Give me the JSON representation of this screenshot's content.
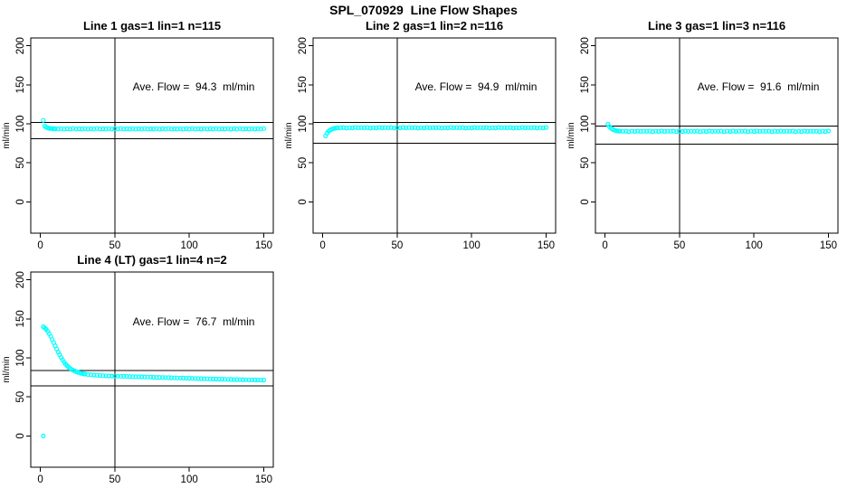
{
  "figure": {
    "title": "SPL_070929  Line Flow Shapes",
    "background": "#ffffff",
    "point_color": "#00ffff",
    "line_color": "#000000"
  },
  "chart_data": [
    {
      "type": "scatter",
      "title": "Line 1 gas=1 lin=1 n=115",
      "annotation": "Ave. Flow =  94.3  ml/min",
      "ave_flow_ml_min": 94.3,
      "n": 115,
      "xlabel": "",
      "ylabel": "ml/min",
      "x_ticks": [
        0,
        50,
        100,
        150
      ],
      "y_ticks": [
        0,
        50,
        100,
        150,
        200
      ],
      "xlim": [
        -6.4,
        156.4
      ],
      "ylim": [
        -40,
        210
      ],
      "grid": false,
      "vline_x": 50,
      "hlines": [
        102,
        81
      ],
      "points": [
        [
          2,
          104.5
        ],
        [
          3,
          97.2
        ],
        [
          4,
          95.6
        ],
        [
          5,
          94.8
        ],
        [
          6,
          94.3
        ],
        [
          7,
          94.0
        ],
        [
          8,
          93.9
        ],
        [
          9,
          93.8
        ],
        [
          10,
          93.7
        ],
        [
          12,
          93.6
        ],
        [
          14,
          93.9
        ],
        [
          16,
          93.3
        ],
        [
          18,
          93.8
        ],
        [
          20,
          93.5
        ],
        [
          22,
          94.0
        ],
        [
          24,
          93.4
        ],
        [
          26,
          93.7
        ],
        [
          28,
          93.6
        ],
        [
          30,
          93.9
        ],
        [
          32,
          93.3
        ],
        [
          34,
          93.8
        ],
        [
          36,
          93.5
        ],
        [
          38,
          94.0
        ],
        [
          40,
          93.4
        ],
        [
          42,
          93.7
        ],
        [
          44,
          93.6
        ],
        [
          46,
          93.9
        ],
        [
          48,
          93.3
        ],
        [
          50,
          93.8
        ],
        [
          52,
          93.5
        ],
        [
          54,
          94.0
        ],
        [
          56,
          93.4
        ],
        [
          58,
          93.7
        ],
        [
          60,
          93.6
        ],
        [
          62,
          93.9
        ],
        [
          64,
          93.3
        ],
        [
          66,
          93.8
        ],
        [
          68,
          93.5
        ],
        [
          70,
          94.0
        ],
        [
          72,
          93.4
        ],
        [
          74,
          93.7
        ],
        [
          76,
          93.6
        ],
        [
          78,
          93.9
        ],
        [
          80,
          93.3
        ],
        [
          82,
          93.8
        ],
        [
          84,
          93.5
        ],
        [
          86,
          94.0
        ],
        [
          88,
          93.4
        ],
        [
          90,
          93.7
        ],
        [
          92,
          93.6
        ],
        [
          94,
          93.9
        ],
        [
          96,
          93.3
        ],
        [
          98,
          93.8
        ],
        [
          100,
          93.5
        ],
        [
          102,
          94.0
        ],
        [
          104,
          93.4
        ],
        [
          106,
          93.7
        ],
        [
          108,
          93.6
        ],
        [
          110,
          93.9
        ],
        [
          112,
          93.3
        ],
        [
          114,
          93.8
        ],
        [
          116,
          93.5
        ],
        [
          118,
          94.0
        ],
        [
          120,
          93.4
        ],
        [
          122,
          93.7
        ],
        [
          124,
          93.6
        ],
        [
          126,
          93.9
        ],
        [
          128,
          93.3
        ],
        [
          130,
          93.8
        ],
        [
          132,
          93.5
        ],
        [
          134,
          94.0
        ],
        [
          136,
          93.4
        ],
        [
          138,
          93.7
        ],
        [
          140,
          93.6
        ],
        [
          142,
          93.9
        ],
        [
          144,
          93.3
        ],
        [
          146,
          93.8
        ],
        [
          148,
          93.5
        ],
        [
          150,
          94.0
        ]
      ]
    },
    {
      "type": "scatter",
      "title": "Line 2 gas=1 lin=2 n=116",
      "annotation": "Ave. Flow =  94.9  ml/min",
      "ave_flow_ml_min": 94.9,
      "n": 116,
      "xlabel": "",
      "ylabel": "ml/min",
      "x_ticks": [
        0,
        50,
        100,
        150
      ],
      "y_ticks": [
        0,
        50,
        100,
        150,
        200
      ],
      "xlim": [
        -6.4,
        156.4
      ],
      "ylim": [
        -40,
        210
      ],
      "grid": false,
      "vline_x": 50,
      "hlines": [
        102,
        75
      ],
      "points": [
        [
          2,
          84.5
        ],
        [
          3,
          88.0
        ],
        [
          4,
          90.5
        ],
        [
          5,
          92.0
        ],
        [
          6,
          93.0
        ],
        [
          7,
          93.8
        ],
        [
          8,
          94.3
        ],
        [
          9,
          94.6
        ],
        [
          10,
          94.8
        ],
        [
          12,
          95.0
        ],
        [
          14,
          95.3
        ],
        [
          16,
          94.7
        ],
        [
          18,
          95.1
        ],
        [
          20,
          94.8
        ],
        [
          22,
          95.4
        ],
        [
          24,
          94.9
        ],
        [
          26,
          95.2
        ],
        [
          28,
          95.0
        ],
        [
          30,
          95.3
        ],
        [
          32,
          94.7
        ],
        [
          34,
          95.1
        ],
        [
          36,
          94.8
        ],
        [
          38,
          95.4
        ],
        [
          40,
          94.9
        ],
        [
          42,
          95.2
        ],
        [
          44,
          95.0
        ],
        [
          46,
          95.3
        ],
        [
          48,
          94.7
        ],
        [
          50,
          95.1
        ],
        [
          52,
          94.8
        ],
        [
          54,
          95.4
        ],
        [
          56,
          94.9
        ],
        [
          58,
          95.2
        ],
        [
          60,
          95.0
        ],
        [
          62,
          95.3
        ],
        [
          64,
          94.7
        ],
        [
          66,
          95.1
        ],
        [
          68,
          94.8
        ],
        [
          70,
          95.4
        ],
        [
          72,
          94.9
        ],
        [
          74,
          95.2
        ],
        [
          76,
          95.0
        ],
        [
          78,
          95.3
        ],
        [
          80,
          94.7
        ],
        [
          82,
          95.1
        ],
        [
          84,
          94.8
        ],
        [
          86,
          95.4
        ],
        [
          88,
          94.9
        ],
        [
          90,
          95.2
        ],
        [
          92,
          95.0
        ],
        [
          94,
          95.3
        ],
        [
          96,
          94.7
        ],
        [
          98,
          95.1
        ],
        [
          100,
          94.8
        ],
        [
          102,
          95.4
        ],
        [
          104,
          94.9
        ],
        [
          106,
          95.2
        ],
        [
          108,
          95.0
        ],
        [
          110,
          95.3
        ],
        [
          112,
          94.7
        ],
        [
          114,
          95.1
        ],
        [
          116,
          94.8
        ],
        [
          118,
          95.4
        ],
        [
          120,
          94.9
        ],
        [
          122,
          95.2
        ],
        [
          124,
          95.0
        ],
        [
          126,
          95.3
        ],
        [
          128,
          94.7
        ],
        [
          130,
          95.1
        ],
        [
          132,
          94.8
        ],
        [
          134,
          95.4
        ],
        [
          136,
          94.9
        ],
        [
          138,
          95.2
        ],
        [
          140,
          95.0
        ],
        [
          142,
          95.3
        ],
        [
          144,
          94.7
        ],
        [
          146,
          95.1
        ],
        [
          148,
          94.8
        ],
        [
          150,
          95.4
        ]
      ]
    },
    {
      "type": "scatter",
      "title": "Line 3 gas=1 lin=3 n=116",
      "annotation": "Ave. Flow =  91.6  ml/min",
      "ave_flow_ml_min": 91.6,
      "n": 116,
      "xlabel": "",
      "ylabel": "ml/min",
      "x_ticks": [
        0,
        50,
        100,
        150
      ],
      "y_ticks": [
        0,
        50,
        100,
        150,
        200
      ],
      "xlim": [
        -6.4,
        156.4
      ],
      "ylim": [
        -40,
        210
      ],
      "grid": false,
      "vline_x": 50,
      "hlines": [
        97,
        74
      ],
      "points": [
        [
          2,
          99.5
        ],
        [
          3,
          96.5
        ],
        [
          4,
          94.6
        ],
        [
          5,
          93.2
        ],
        [
          6,
          92.2
        ],
        [
          7,
          91.5
        ],
        [
          8,
          91.0
        ],
        [
          9,
          90.8
        ],
        [
          10,
          90.6
        ],
        [
          12,
          90.4
        ],
        [
          14,
          90.7
        ],
        [
          16,
          90.1
        ],
        [
          18,
          90.5
        ],
        [
          20,
          90.2
        ],
        [
          22,
          90.8
        ],
        [
          24,
          90.3
        ],
        [
          26,
          90.6
        ],
        [
          28,
          90.4
        ],
        [
          30,
          90.7
        ],
        [
          32,
          90.1
        ],
        [
          34,
          90.5
        ],
        [
          36,
          90.2
        ],
        [
          38,
          90.8
        ],
        [
          40,
          90.3
        ],
        [
          42,
          90.6
        ],
        [
          44,
          90.4
        ],
        [
          46,
          90.7
        ],
        [
          48,
          90.1
        ],
        [
          50,
          90.5
        ],
        [
          52,
          90.2
        ],
        [
          54,
          90.8
        ],
        [
          56,
          90.3
        ],
        [
          58,
          90.6
        ],
        [
          60,
          90.4
        ],
        [
          62,
          90.7
        ],
        [
          64,
          90.1
        ],
        [
          66,
          90.5
        ],
        [
          68,
          90.2
        ],
        [
          70,
          90.8
        ],
        [
          72,
          90.3
        ],
        [
          74,
          90.6
        ],
        [
          76,
          90.4
        ],
        [
          78,
          90.7
        ],
        [
          80,
          90.1
        ],
        [
          82,
          90.5
        ],
        [
          84,
          90.2
        ],
        [
          86,
          90.8
        ],
        [
          88,
          90.3
        ],
        [
          90,
          90.6
        ],
        [
          92,
          90.4
        ],
        [
          94,
          90.7
        ],
        [
          96,
          90.1
        ],
        [
          98,
          90.5
        ],
        [
          100,
          90.2
        ],
        [
          102,
          90.8
        ],
        [
          104,
          90.3
        ],
        [
          106,
          90.6
        ],
        [
          108,
          90.4
        ],
        [
          110,
          90.7
        ],
        [
          112,
          90.1
        ],
        [
          114,
          90.5
        ],
        [
          116,
          90.2
        ],
        [
          118,
          90.8
        ],
        [
          120,
          90.3
        ],
        [
          122,
          90.6
        ],
        [
          124,
          90.4
        ],
        [
          126,
          90.7
        ],
        [
          128,
          90.1
        ],
        [
          130,
          90.5
        ],
        [
          132,
          90.2
        ],
        [
          134,
          90.8
        ],
        [
          136,
          90.3
        ],
        [
          138,
          90.6
        ],
        [
          140,
          90.4
        ],
        [
          142,
          90.7
        ],
        [
          144,
          90.1
        ],
        [
          146,
          90.5
        ],
        [
          148,
          90.2
        ],
        [
          150,
          90.8
        ]
      ]
    },
    {
      "type": "scatter",
      "title": "Line 4 (LT) gas=1 lin=4 n=2",
      "annotation": "Ave. Flow =  76.7  ml/min",
      "ave_flow_ml_min": 76.7,
      "n": 2,
      "xlabel": "",
      "ylabel": "ml/min",
      "x_ticks": [
        0,
        50,
        100,
        150
      ],
      "y_ticks": [
        0,
        50,
        100,
        150,
        200
      ],
      "xlim": [
        -6.4,
        156.4
      ],
      "ylim": [
        -40,
        210
      ],
      "grid": false,
      "vline_x": 50,
      "hlines": [
        84,
        64
      ],
      "points": [
        [
          2,
          0
        ],
        [
          2,
          140
        ],
        [
          3,
          138.5
        ],
        [
          4,
          136.5
        ],
        [
          5,
          134
        ],
        [
          6,
          131
        ],
        [
          7,
          127.5
        ],
        [
          8,
          123.5
        ],
        [
          9,
          119.5
        ],
        [
          10,
          115.5
        ],
        [
          11,
          111.5
        ],
        [
          12,
          107.5
        ],
        [
          13,
          104
        ],
        [
          14,
          100.5
        ],
        [
          15,
          97.5
        ],
        [
          16,
          94.5
        ],
        [
          17,
          92
        ],
        [
          18,
          90
        ],
        [
          19,
          88
        ],
        [
          20,
          86.5
        ],
        [
          21,
          85.2
        ],
        [
          22,
          84.2
        ],
        [
          23,
          83.3
        ],
        [
          24,
          82.5
        ],
        [
          25,
          81.8
        ],
        [
          26,
          81.2
        ],
        [
          27,
          80.6
        ],
        [
          28,
          80.1
        ],
        [
          29,
          79.7
        ],
        [
          30,
          79.3
        ],
        [
          32,
          78.8
        ],
        [
          34,
          78.4
        ],
        [
          36,
          78.0
        ],
        [
          38,
          77.7
        ],
        [
          40,
          77.5
        ],
        [
          42,
          77.3
        ],
        [
          44,
          77.1
        ],
        [
          46,
          76.9
        ],
        [
          48,
          76.8
        ],
        [
          50,
          76.7
        ],
        [
          52,
          76.6
        ],
        [
          54,
          76.5
        ],
        [
          56,
          76.4
        ],
        [
          58,
          76.3
        ],
        [
          60,
          76.2
        ],
        [
          62,
          76.0
        ],
        [
          64,
          75.9
        ],
        [
          66,
          75.8
        ],
        [
          68,
          75.7
        ],
        [
          70,
          75.6
        ],
        [
          72,
          75.5
        ],
        [
          74,
          75.4
        ],
        [
          76,
          75.2
        ],
        [
          78,
          75.1
        ],
        [
          80,
          75.0
        ],
        [
          82,
          74.9
        ],
        [
          84,
          74.8
        ],
        [
          86,
          74.7
        ],
        [
          88,
          74.6
        ],
        [
          90,
          74.4
        ],
        [
          92,
          74.3
        ],
        [
          94,
          74.2
        ],
        [
          96,
          74.1
        ],
        [
          98,
          74.0
        ],
        [
          100,
          73.9
        ],
        [
          102,
          73.8
        ],
        [
          104,
          73.6
        ],
        [
          106,
          73.5
        ],
        [
          108,
          73.4
        ],
        [
          110,
          73.3
        ],
        [
          112,
          73.2
        ],
        [
          114,
          73.1
        ],
        [
          116,
          73.0
        ],
        [
          118,
          72.9
        ],
        [
          120,
          72.8
        ],
        [
          122,
          72.7
        ],
        [
          124,
          72.6
        ],
        [
          126,
          72.5
        ],
        [
          128,
          72.4
        ],
        [
          130,
          72.3
        ],
        [
          132,
          72.3
        ],
        [
          134,
          72.2
        ],
        [
          136,
          72.1
        ],
        [
          138,
          72.0
        ],
        [
          140,
          71.9
        ],
        [
          142,
          71.9
        ],
        [
          144,
          71.8
        ],
        [
          146,
          71.7
        ],
        [
          148,
          71.7
        ],
        [
          150,
          71.6
        ]
      ]
    }
  ]
}
